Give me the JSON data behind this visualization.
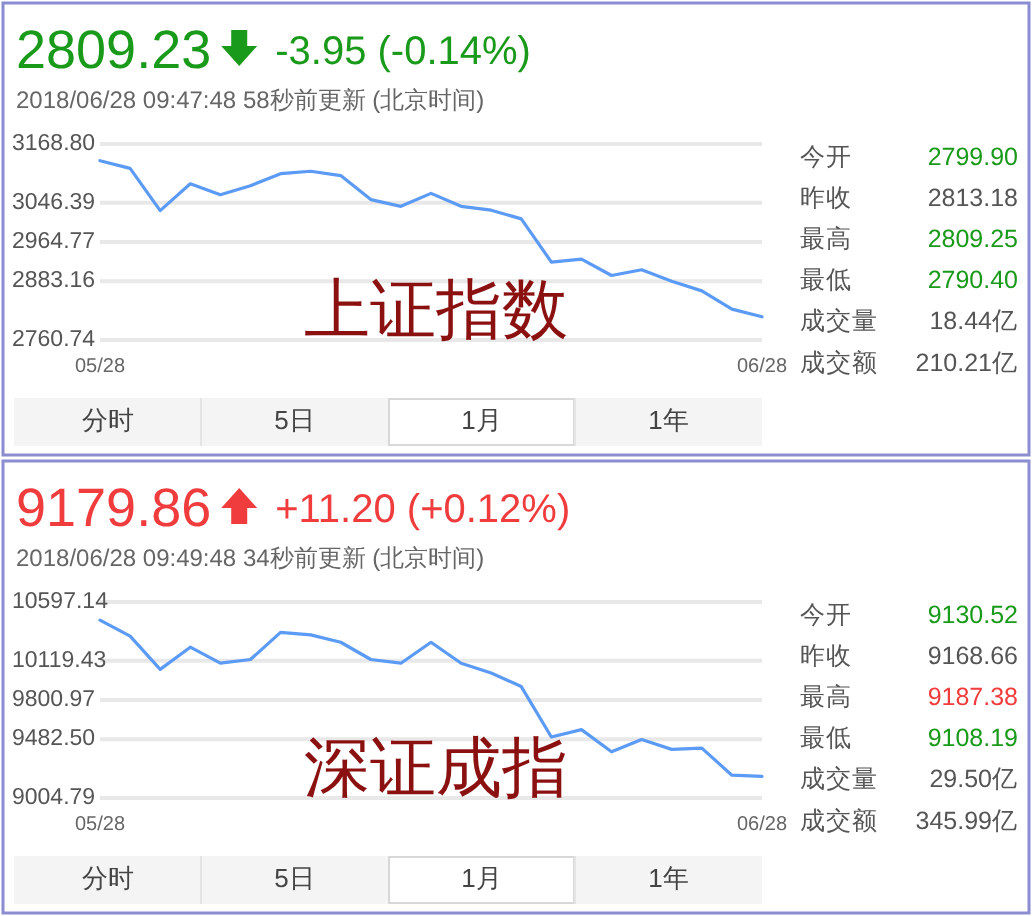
{
  "chart_data": [
    {
      "type": "line",
      "title": "2809.23",
      "subtitle": "2018/06/28 09:47:48  58秒前更新  (北京时间)",
      "annotations": [
        "-3.95 (-0.14%)",
        "上证指数",
        "分时",
        "5日",
        "1月",
        "1年"
      ],
      "categories": [
        "05/28",
        null,
        null,
        null,
        null,
        null,
        null,
        null,
        null,
        null,
        null,
        null,
        null,
        null,
        null,
        null,
        null,
        null,
        null,
        null,
        null,
        null,
        "06/28"
      ],
      "values": [
        3134,
        3118,
        3030,
        3086,
        3063,
        3082,
        3107,
        3112,
        3103,
        3053,
        3039,
        3066,
        3039,
        3031,
        3013,
        2923,
        2929,
        2895,
        2907,
        2883,
        2863,
        2825,
        2809
      ],
      "color": "#5b9bf5",
      "ylim": [
        2760.74,
        3168.8
      ],
      "yticks": [
        {
          "value": 2760.74,
          "label": "2760.74"
        },
        {
          "value": 2883.16,
          "label": "2883.16"
        },
        {
          "value": 2964.77,
          "label": "2964.77"
        },
        {
          "value": 3046.39,
          "label": "3046.39"
        },
        {
          "value": 3168.8,
          "label": "3168.80"
        }
      ],
      "grid": "y"
    },
    {
      "type": "other",
      "categories": [
        "今开",
        "昨收",
        "最高",
        "最低",
        "成交量",
        "成交额"
      ],
      "value_labels": [
        "2799.90",
        "2813.18",
        "2809.25",
        "2790.40",
        "18.44亿",
        "210.21亿"
      ]
    },
    {
      "type": "line",
      "title": "9179.86",
      "subtitle": "2018/06/28 09:49:48  34秒前更新  (北京时间)",
      "annotations": [
        "+11.20 (+0.12%)",
        "深证成指",
        "分时",
        "5日",
        "1月",
        "1年"
      ],
      "categories": [
        "05/28",
        null,
        null,
        null,
        null,
        null,
        null,
        null,
        null,
        null,
        null,
        null,
        null,
        null,
        null,
        null,
        null,
        null,
        null,
        null,
        null,
        null,
        "06/28"
      ],
      "values": [
        10450,
        10320,
        10050,
        10230,
        10100,
        10130,
        10350,
        10330,
        10270,
        10130,
        10100,
        10270,
        10100,
        10020,
        9910,
        9500,
        9560,
        9380,
        9480,
        9400,
        9410,
        9190,
        9180
      ],
      "color": "#5b9bf5",
      "ylim": [
        9004.79,
        10597.14
      ],
      "yticks": [
        {
          "value": 9004.79,
          "label": "9004.79"
        },
        {
          "value": 9482.5,
          "label": "9482.50"
        },
        {
          "value": 9800.97,
          "label": "9800.97"
        },
        {
          "value": 10119.43,
          "label": "10119.43"
        },
        {
          "value": 10597.14,
          "label": "10597.14"
        }
      ],
      "grid": "y"
    },
    {
      "type": "other",
      "categories": [
        "今开",
        "昨收",
        "最高",
        "最低",
        "成交量",
        "成交额"
      ],
      "value_labels": [
        "9130.52",
        "9168.66",
        "9187.38",
        "9108.19",
        "29.50亿",
        "345.99亿"
      ]
    }
  ]
}
